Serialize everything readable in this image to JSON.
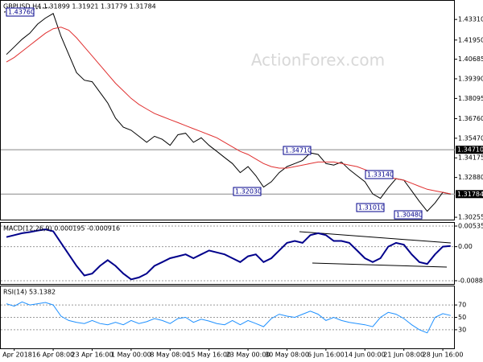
{
  "chart_data": [
    {
      "type": "line",
      "title": "GBPUSD,H4  1.31899 1.31921 1.31779 1.31784",
      "watermark": "ActionForex.com",
      "categories": [
        null,
        "9 Apr 2018",
        null,
        null,
        null,
        null,
        "16 Apr 08:00",
        null,
        null,
        null,
        null,
        "23 Apr 16:00",
        null,
        null,
        null,
        null,
        "1 May 00:00",
        null,
        null,
        null,
        null,
        "8 May 08:00",
        null,
        null,
        null,
        null,
        "15 May 16:00",
        null,
        null,
        null,
        null,
        "23 May 00:00",
        null,
        null,
        null,
        null,
        "30 May 08:00",
        null,
        null,
        null,
        null,
        "6 Jun 16:00",
        null,
        null,
        null,
        null,
        "14 Jun 00:00",
        null,
        null,
        null,
        null,
        "21 Jun 08:00",
        null,
        null,
        null,
        null,
        "28 Jun 16:00",
        null
      ],
      "series": [
        {
          "color": "#000000",
          "values": [
            1.41,
            1.415,
            1.42,
            1.424,
            1.43,
            1.434,
            1.437,
            1.422,
            1.41,
            1.398,
            1.393,
            1.392,
            1.385,
            1.378,
            1.368,
            1.362,
            1.36,
            1.356,
            1.352,
            1.356,
            1.354,
            1.35,
            1.357,
            1.358,
            1.352,
            1.355,
            1.35,
            1.346,
            1.342,
            1.338,
            1.332,
            1.336,
            1.33,
            1.3225,
            1.326,
            1.332,
            1.336,
            1.338,
            1.34,
            1.345,
            1.344,
            1.338,
            1.337,
            1.339,
            1.334,
            1.33,
            1.326,
            1.318,
            1.315,
            1.322,
            1.328,
            1.327,
            1.32,
            1.313,
            1.3065,
            1.312,
            1.319,
            1.3178
          ]
        },
        {
          "color": "#e03030",
          "values": [
            1.405,
            1.408,
            1.412,
            1.416,
            1.42,
            1.424,
            1.427,
            1.428,
            1.426,
            1.421,
            1.415,
            1.409,
            1.403,
            1.397,
            1.391,
            1.386,
            1.381,
            1.377,
            1.374,
            1.371,
            1.369,
            1.367,
            1.365,
            1.363,
            1.361,
            1.359,
            1.357,
            1.355,
            1.352,
            1.349,
            1.346,
            1.344,
            1.341,
            1.338,
            1.336,
            1.335,
            1.335,
            1.336,
            1.337,
            1.338,
            1.339,
            1.339,
            1.339,
            1.338,
            1.337,
            1.336,
            1.334,
            1.332,
            1.33,
            1.329,
            1.328,
            1.327,
            1.325,
            1.323,
            1.321,
            1.32,
            1.319,
            1.318
          ]
        }
      ],
      "ylim": [
        1.301,
        1.4454
      ],
      "yticks": [
        {
          "value": 1.4331,
          "label": "1.43310"
        },
        {
          "value": 1.4195,
          "label": "1.41950"
        },
        {
          "value": 1.40685,
          "label": "1.40685"
        },
        {
          "value": 1.3939,
          "label": "1.39390"
        },
        {
          "value": 1.38095,
          "label": "1.38095"
        },
        {
          "value": 1.3676,
          "label": "1.36760"
        },
        {
          "value": 1.3547,
          "label": "1.35470"
        },
        {
          "value": 1.34175,
          "label": "1.34175"
        },
        {
          "value": 1.3288,
          "label": "1.32880"
        },
        {
          "value": 1.30255,
          "label": "1.30255"
        }
      ],
      "hlines": [
        {
          "value": 1.3471,
          "label": "1.34710"
        },
        {
          "value": 1.31784,
          "label": "1.31784"
        }
      ],
      "annotations": [
        "1.43760",
        "1.34710",
        "1.32030",
        "1.33140",
        "1.31010",
        "1.30480"
      ]
    },
    {
      "type": "line",
      "title": "MACD(12,26,9) 0.000195 -0.000916",
      "series": [
        {
          "color": "#00008b",
          "values": [
            0.0025,
            0.003,
            0.0035,
            0.0038,
            0.0042,
            0.0045,
            0.004,
            0.001,
            -0.002,
            -0.005,
            -0.0075,
            -0.007,
            -0.005,
            -0.0035,
            -0.005,
            -0.007,
            -0.0085,
            -0.008,
            -0.007,
            -0.005,
            -0.004,
            -0.003,
            -0.0025,
            -0.002,
            -0.003,
            -0.002,
            -0.001,
            -0.0015,
            -0.002,
            -0.003,
            -0.004,
            -0.0025,
            -0.002,
            -0.004,
            -0.003,
            -0.001,
            0.001,
            0.0015,
            0.001,
            0.003,
            0.0035,
            0.003,
            0.0015,
            0.0015,
            0.001,
            -0.001,
            -0.003,
            -0.004,
            -0.003,
            0,
            0.001,
            0.0005,
            -0.002,
            -0.004,
            -0.0045,
            -0.002,
            0,
            0.0002
          ]
        }
      ],
      "ylim": [
        -0.0097,
        0.0062
      ],
      "yticks": [
        0.005358,
        {
          "value": 0,
          "label": "0.00"
        },
        -0.008855
      ]
    },
    {
      "type": "line",
      "title": "RSI(14) 53.1382",
      "series": [
        {
          "color": "#1e90ff",
          "values": [
            72,
            68,
            75,
            70,
            72,
            74,
            70,
            52,
            45,
            42,
            40,
            45,
            40,
            38,
            42,
            38,
            45,
            40,
            43,
            48,
            45,
            40,
            48,
            50,
            42,
            47,
            44,
            40,
            38,
            45,
            38,
            45,
            40,
            35,
            48,
            55,
            52,
            50,
            55,
            60,
            55,
            45,
            50,
            45,
            42,
            40,
            38,
            35,
            50,
            58,
            55,
            48,
            38,
            30,
            25,
            50,
            56,
            53
          ]
        }
      ],
      "ylim": [
        0,
        100
      ],
      "yticks": [
        70,
        50,
        30
      ]
    }
  ]
}
